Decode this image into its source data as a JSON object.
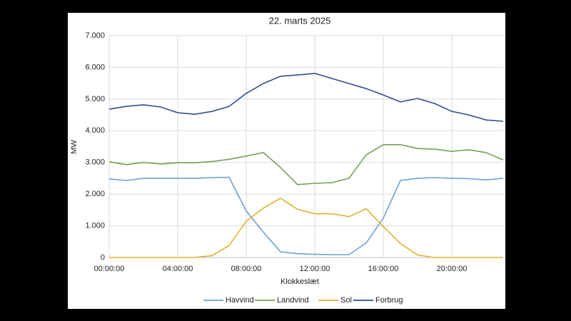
{
  "chart_data": {
    "type": "line",
    "title": "22. marts 2025",
    "x_label": "Klokkeslæt",
    "y_label": "MW",
    "categories": [
      "00:00:00",
      null,
      null,
      null,
      "04:00:00",
      null,
      null,
      null,
      "08:00:00",
      null,
      null,
      null,
      "12:00:00",
      null,
      null,
      null,
      "16:00:00",
      null,
      null,
      null,
      "20:00:00",
      null,
      null,
      null
    ],
    "series": [
      {
        "name": "Havvind",
        "color": "#6f9fd8",
        "values": [
          2480,
          2430,
          2500,
          2500,
          2500,
          2500,
          2520,
          2530,
          1470,
          800,
          180,
          120,
          100,
          90,
          90,
          460,
          1240,
          2430,
          2500,
          2520,
          2500,
          2490,
          2450,
          2500
        ]
      },
      {
        "name": "Landvind",
        "color": "#70a354",
        "values": [
          3020,
          2930,
          3000,
          2950,
          2990,
          2990,
          3030,
          3100,
          3200,
          3310,
          2840,
          2300,
          2340,
          2360,
          2500,
          3240,
          3560,
          3560,
          3440,
          3420,
          3350,
          3400,
          3310,
          3080
        ]
      },
      {
        "name": "Sol",
        "color": "#e0b030",
        "values": [
          0,
          0,
          0,
          0,
          0,
          0,
          60,
          380,
          1150,
          1560,
          1870,
          1520,
          1380,
          1380,
          1290,
          1540,
          980,
          440,
          80,
          0,
          0,
          0,
          0,
          0
        ]
      },
      {
        "name": "Forbrug",
        "color": "#2f4f8f",
        "values": [
          4680,
          4770,
          4820,
          4750,
          4570,
          4520,
          4610,
          4770,
          5180,
          5490,
          5720,
          5760,
          5810,
          5650,
          5490,
          5330,
          5130,
          4910,
          5020,
          4860,
          4610,
          4500,
          4340,
          4300
        ]
      }
    ],
    "ylim": [
      0,
      7000
    ],
    "yticks": [
      0,
      {
        "value": 1000,
        "label": "1.000"
      },
      {
        "value": 2000,
        "label": "2.000"
      },
      {
        "value": 3000,
        "label": "3.000"
      },
      {
        "value": 4000,
        "label": "4.000"
      },
      {
        "value": 5000,
        "label": "5.000"
      },
      {
        "value": 6000,
        "label": "6.000"
      },
      {
        "value": 7000,
        "label": "7.000"
      }
    ],
    "grid": true,
    "legend": "bottom"
  }
}
